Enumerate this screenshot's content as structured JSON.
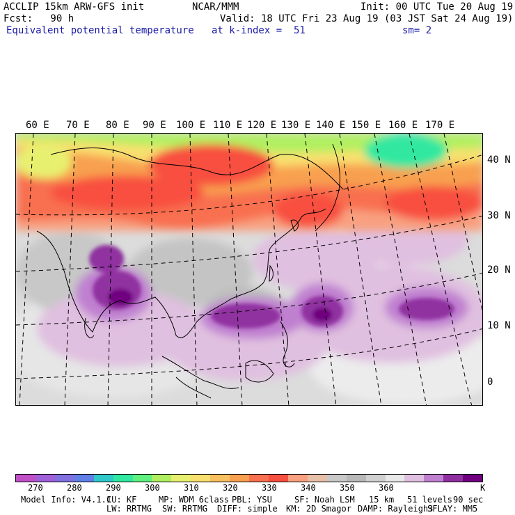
{
  "header": {
    "line1_left": "ACCLIP 15km ARW-GFS init",
    "line1_center": "NCAR/MMM",
    "line1_right": "Init: 00 UTC Tue 20 Aug 19",
    "line2_left": "Fcst:   90 h",
    "line2_right": "Valid: 18 UTC Fri 23 Aug 19 (03 JST Sat 24 Aug 19)",
    "line3_field": "Equivalent potential temperature",
    "line3_level": "at k-index =  51",
    "line3_smooth": "sm= 2"
  },
  "map": {
    "lon_labels": [
      "60 E",
      "70 E",
      "80 E",
      "90 E",
      "100 E",
      "110 E",
      "120 E",
      "130 E",
      "140 E",
      "150 E",
      "160 E",
      "170 E"
    ],
    "lat_labels": [
      "40 N",
      "30 N",
      "20 N",
      "10 N",
      "0"
    ]
  },
  "colorbar": {
    "colors": [
      "#c050c8",
      "#a060d8",
      "#8070e0",
      "#6080e8",
      "#30c8c8",
      "#30e8a0",
      "#60f080",
      "#b0f060",
      "#e8f070",
      "#f8e070",
      "#f8c060",
      "#f8a050",
      "#f87050",
      "#f85040",
      "#f8a080",
      "#e8c0a8",
      "#c8c8c8",
      "#b8b8b8",
      "#d0d0d0",
      "#e8e8e8",
      "#e0c0e0",
      "#c080d0",
      "#9030a0",
      "#700080"
    ],
    "tick_labels": [
      "270",
      "280",
      "290",
      "300",
      "310",
      "320",
      "330",
      "340",
      "350",
      "360"
    ],
    "unit": "K"
  },
  "model_info": {
    "line1": [
      "Model Info: V4.1.1",
      "CU: KF",
      "MP: WDM 6class",
      "PBL: YSU",
      "SF: Noah LSM",
      "15 km",
      "51 levels",
      "90 sec"
    ],
    "line2": [
      "LW: RRTMG",
      "SW: RRTMG",
      "DIFF: simple",
      "KM: 2D Smagor",
      "DAMP: Rayleigh3",
      "SFLAY: MM5"
    ]
  }
}
